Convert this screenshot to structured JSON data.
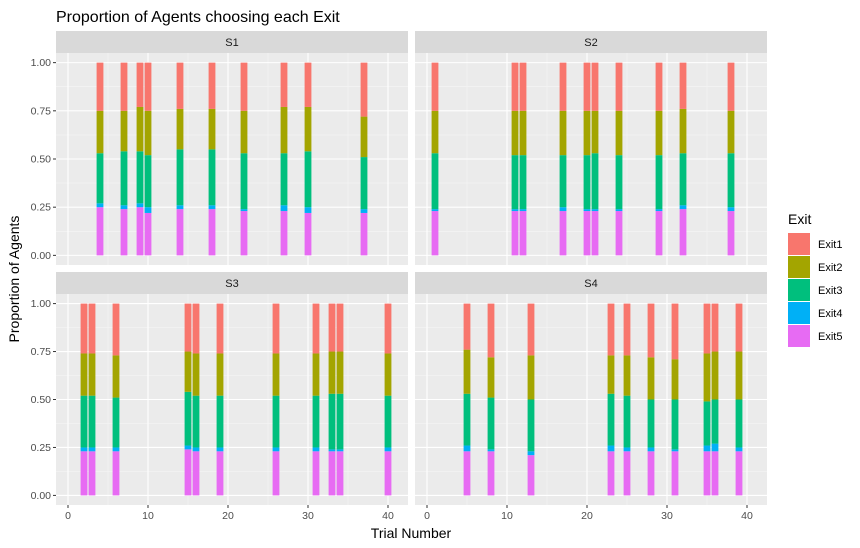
{
  "chart_data": {
    "type": "bar",
    "stacked": true,
    "faceted": true,
    "title": "Proportion of Agents choosing each Exit",
    "xlabel": "Trial Number",
    "ylabel": "Proportion of Agents",
    "xlim": [
      -1.5,
      42.5
    ],
    "ylim": [
      -0.05,
      1.05
    ],
    "x_ticks": [
      0,
      10,
      20,
      30,
      40
    ],
    "x_tick_labels": [
      "0",
      "10",
      "20",
      "30",
      "40"
    ],
    "y_ticks": [
      0,
      0.25,
      0.5,
      0.75,
      1.0
    ],
    "y_tick_labels": [
      "0.00",
      "0.25",
      "0.50",
      "0.75",
      "1.00"
    ],
    "grid": true,
    "legend": {
      "title": "Exit",
      "position": "right",
      "entries": [
        "Exit1",
        "Exit2",
        "Exit3",
        "Exit4",
        "Exit5"
      ]
    },
    "colors": {
      "Exit1": "#F8766D",
      "Exit2": "#A3A500",
      "Exit3": "#00BF7D",
      "Exit4": "#00B0F6",
      "Exit5": "#E76BF3"
    },
    "stack_order_bottom_to_top": [
      "Exit5",
      "Exit4",
      "Exit3",
      "Exit2",
      "Exit1"
    ],
    "panels": [
      {
        "name": "S1",
        "bars": [
          {
            "x": 4,
            "Exit5": 0.25,
            "Exit4": 0.02,
            "Exit3": 0.26,
            "Exit2": 0.22,
            "Exit1": 0.25
          },
          {
            "x": 7,
            "Exit5": 0.24,
            "Exit4": 0.02,
            "Exit3": 0.28,
            "Exit2": 0.21,
            "Exit1": 0.25
          },
          {
            "x": 9,
            "Exit5": 0.25,
            "Exit4": 0.02,
            "Exit3": 0.27,
            "Exit2": 0.23,
            "Exit1": 0.23
          },
          {
            "x": 10,
            "Exit5": 0.22,
            "Exit4": 0.03,
            "Exit3": 0.27,
            "Exit2": 0.23,
            "Exit1": 0.25
          },
          {
            "x": 14,
            "Exit5": 0.24,
            "Exit4": 0.02,
            "Exit3": 0.29,
            "Exit2": 0.21,
            "Exit1": 0.24
          },
          {
            "x": 18,
            "Exit5": 0.24,
            "Exit4": 0.02,
            "Exit3": 0.29,
            "Exit2": 0.21,
            "Exit1": 0.24
          },
          {
            "x": 22,
            "Exit5": 0.23,
            "Exit4": 0.01,
            "Exit3": 0.29,
            "Exit2": 0.22,
            "Exit1": 0.25
          },
          {
            "x": 27,
            "Exit5": 0.23,
            "Exit4": 0.03,
            "Exit3": 0.27,
            "Exit2": 0.24,
            "Exit1": 0.23
          },
          {
            "x": 30,
            "Exit5": 0.22,
            "Exit4": 0.03,
            "Exit3": 0.29,
            "Exit2": 0.23,
            "Exit1": 0.23
          },
          {
            "x": 37,
            "Exit5": 0.22,
            "Exit4": 0.02,
            "Exit3": 0.27,
            "Exit2": 0.21,
            "Exit1": 0.28
          }
        ]
      },
      {
        "name": "S2",
        "bars": [
          {
            "x": 1,
            "Exit5": 0.23,
            "Exit4": 0.01,
            "Exit3": 0.29,
            "Exit2": 0.22,
            "Exit1": 0.25
          },
          {
            "x": 11,
            "Exit5": 0.23,
            "Exit4": 0.01,
            "Exit3": 0.28,
            "Exit2": 0.23,
            "Exit1": 0.25
          },
          {
            "x": 12,
            "Exit5": 0.23,
            "Exit4": 0.01,
            "Exit3": 0.28,
            "Exit2": 0.23,
            "Exit1": 0.25
          },
          {
            "x": 17,
            "Exit5": 0.23,
            "Exit4": 0.02,
            "Exit3": 0.27,
            "Exit2": 0.23,
            "Exit1": 0.25
          },
          {
            "x": 20,
            "Exit5": 0.23,
            "Exit4": 0.01,
            "Exit3": 0.28,
            "Exit2": 0.23,
            "Exit1": 0.25
          },
          {
            "x": 21,
            "Exit5": 0.23,
            "Exit4": 0.01,
            "Exit3": 0.29,
            "Exit2": 0.22,
            "Exit1": 0.25
          },
          {
            "x": 24,
            "Exit5": 0.23,
            "Exit4": 0.01,
            "Exit3": 0.28,
            "Exit2": 0.23,
            "Exit1": 0.25
          },
          {
            "x": 29,
            "Exit5": 0.23,
            "Exit4": 0.01,
            "Exit3": 0.28,
            "Exit2": 0.23,
            "Exit1": 0.25
          },
          {
            "x": 32,
            "Exit5": 0.24,
            "Exit4": 0.02,
            "Exit3": 0.27,
            "Exit2": 0.23,
            "Exit1": 0.24
          },
          {
            "x": 38,
            "Exit5": 0.23,
            "Exit4": 0.02,
            "Exit3": 0.28,
            "Exit2": 0.22,
            "Exit1": 0.25
          }
        ]
      },
      {
        "name": "S3",
        "bars": [
          {
            "x": 2,
            "Exit5": 0.23,
            "Exit4": 0.02,
            "Exit3": 0.27,
            "Exit2": 0.22,
            "Exit1": 0.26
          },
          {
            "x": 3,
            "Exit5": 0.23,
            "Exit4": 0.02,
            "Exit3": 0.27,
            "Exit2": 0.22,
            "Exit1": 0.26
          },
          {
            "x": 6,
            "Exit5": 0.23,
            "Exit4": 0.02,
            "Exit3": 0.26,
            "Exit2": 0.22,
            "Exit1": 0.27
          },
          {
            "x": 15,
            "Exit5": 0.24,
            "Exit4": 0.02,
            "Exit3": 0.28,
            "Exit2": 0.21,
            "Exit1": 0.25
          },
          {
            "x": 16,
            "Exit5": 0.23,
            "Exit4": 0.02,
            "Exit3": 0.27,
            "Exit2": 0.22,
            "Exit1": 0.26
          },
          {
            "x": 19,
            "Exit5": 0.23,
            "Exit4": 0.02,
            "Exit3": 0.27,
            "Exit2": 0.22,
            "Exit1": 0.26
          },
          {
            "x": 26,
            "Exit5": 0.23,
            "Exit4": 0.02,
            "Exit3": 0.27,
            "Exit2": 0.22,
            "Exit1": 0.26
          },
          {
            "x": 31,
            "Exit5": 0.23,
            "Exit4": 0.02,
            "Exit3": 0.27,
            "Exit2": 0.22,
            "Exit1": 0.26
          },
          {
            "x": 33,
            "Exit5": 0.23,
            "Exit4": 0.01,
            "Exit3": 0.29,
            "Exit2": 0.22,
            "Exit1": 0.25
          },
          {
            "x": 34,
            "Exit5": 0.23,
            "Exit4": 0.01,
            "Exit3": 0.29,
            "Exit2": 0.22,
            "Exit1": 0.25
          },
          {
            "x": 40,
            "Exit5": 0.23,
            "Exit4": 0.02,
            "Exit3": 0.27,
            "Exit2": 0.22,
            "Exit1": 0.26
          }
        ]
      },
      {
        "name": "S4",
        "bars": [
          {
            "x": 5,
            "Exit5": 0.23,
            "Exit4": 0.03,
            "Exit3": 0.27,
            "Exit2": 0.23,
            "Exit1": 0.24
          },
          {
            "x": 8,
            "Exit5": 0.23,
            "Exit4": 0.01,
            "Exit3": 0.27,
            "Exit2": 0.21,
            "Exit1": 0.28
          },
          {
            "x": 13,
            "Exit5": 0.21,
            "Exit4": 0.02,
            "Exit3": 0.27,
            "Exit2": 0.23,
            "Exit1": 0.27
          },
          {
            "x": 23,
            "Exit5": 0.23,
            "Exit4": 0.03,
            "Exit3": 0.27,
            "Exit2": 0.2,
            "Exit1": 0.27
          },
          {
            "x": 25,
            "Exit5": 0.23,
            "Exit4": 0.02,
            "Exit3": 0.27,
            "Exit2": 0.21,
            "Exit1": 0.27
          },
          {
            "x": 28,
            "Exit5": 0.23,
            "Exit4": 0.02,
            "Exit3": 0.25,
            "Exit2": 0.22,
            "Exit1": 0.28
          },
          {
            "x": 31,
            "Exit5": 0.23,
            "Exit4": 0.01,
            "Exit3": 0.26,
            "Exit2": 0.21,
            "Exit1": 0.29
          },
          {
            "x": 35,
            "Exit5": 0.23,
            "Exit4": 0.03,
            "Exit3": 0.23,
            "Exit2": 0.25,
            "Exit1": 0.26
          },
          {
            "x": 36,
            "Exit5": 0.23,
            "Exit4": 0.04,
            "Exit3": 0.23,
            "Exit2": 0.25,
            "Exit1": 0.25
          },
          {
            "x": 39,
            "Exit5": 0.23,
            "Exit4": 0.02,
            "Exit3": 0.25,
            "Exit2": 0.25,
            "Exit1": 0.25
          }
        ]
      }
    ]
  }
}
